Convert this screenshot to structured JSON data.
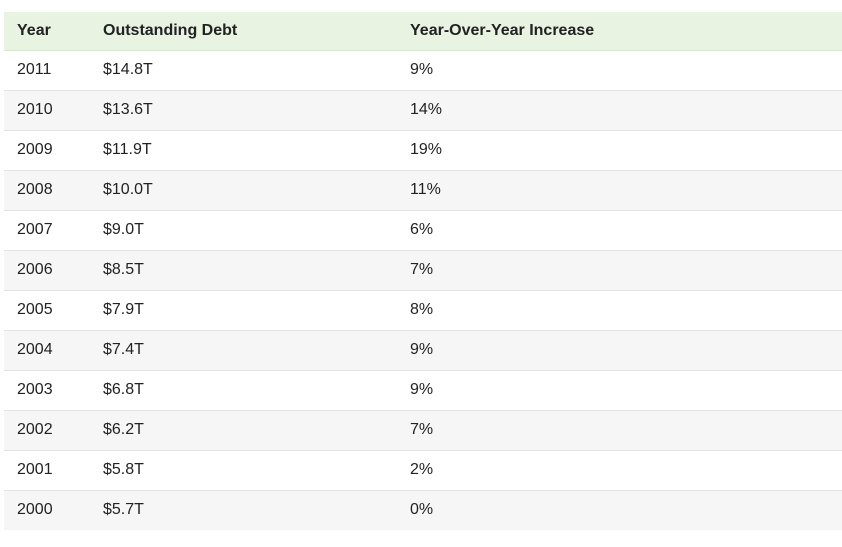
{
  "table": {
    "headers": [
      "Year",
      "Outstanding Debt",
      "Year-Over-Year Increase"
    ],
    "rows": [
      [
        "2011",
        "$14.8T",
        "9%"
      ],
      [
        "2010",
        "$13.6T",
        "14%"
      ],
      [
        "2009",
        "$11.9T",
        "19%"
      ],
      [
        "2008",
        "$10.0T",
        "11%"
      ],
      [
        "2007",
        "$9.0T",
        "6%"
      ],
      [
        "2006",
        "$8.5T",
        "7%"
      ],
      [
        "2005",
        "$7.9T",
        "8%"
      ],
      [
        "2004",
        "$7.4T",
        "9%"
      ],
      [
        "2003",
        "$6.8T",
        "9%"
      ],
      [
        "2002",
        "$6.2T",
        "7%"
      ],
      [
        "2001",
        "$5.8T",
        "2%"
      ],
      [
        "2000",
        "$5.7T",
        "0%"
      ]
    ]
  },
  "colors": {
    "header_background": "#e8f3e1",
    "stripe_background": "#f6f6f6",
    "text": "#222222"
  }
}
